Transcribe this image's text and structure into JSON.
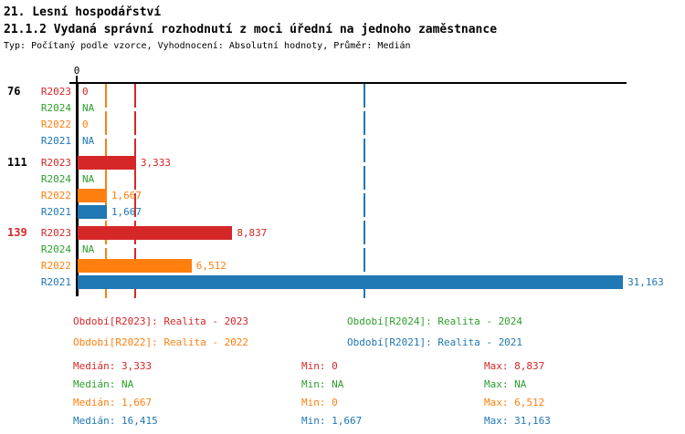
{
  "header": {
    "title": "21. Lesní hospodářství",
    "subtitle": "21.1.2 Vydaná správní rozhodnutí z moci úřední na jednoho zaměstnance",
    "meta": "Typ: Počítaný podle vzorce, Vyhodnocení: Absolutní hodnoty, Průměr: Medián"
  },
  "colors": {
    "R2023": "#d62728",
    "R2024": "#2ca02c",
    "R2022": "#ff7f0e",
    "R2021": "#1f77b4",
    "text": "#000000"
  },
  "chart_data": {
    "type": "bar",
    "orientation": "horizontal",
    "axis": {
      "min": 0,
      "max": 31.42,
      "tick_labels": [
        "0"
      ]
    },
    "groups": [
      {
        "label": "76",
        "label_color": "#000000",
        "bars": [
          {
            "series": "R2023",
            "value": 0,
            "display": "0"
          },
          {
            "series": "R2024",
            "value": null,
            "display": "NA"
          },
          {
            "series": "R2022",
            "value": 0,
            "display": "0"
          },
          {
            "series": "R2021",
            "value": null,
            "display": "NA"
          }
        ]
      },
      {
        "label": "111",
        "label_color": "#000000",
        "bars": [
          {
            "series": "R2023",
            "value": 3.333,
            "display": "3,333"
          },
          {
            "series": "R2024",
            "value": null,
            "display": "NA"
          },
          {
            "series": "R2022",
            "value": 1.667,
            "display": "1,667"
          },
          {
            "series": "R2021",
            "value": 1.667,
            "display": "1,667"
          }
        ]
      },
      {
        "label": "139",
        "label_color": "#d62728",
        "bars": [
          {
            "series": "R2023",
            "value": 8.837,
            "display": "8,837"
          },
          {
            "series": "R2024",
            "value": null,
            "display": "NA"
          },
          {
            "series": "R2022",
            "value": 6.512,
            "display": "6,512"
          },
          {
            "series": "R2021",
            "value": 31.163,
            "display": "31,163"
          }
        ]
      }
    ],
    "median_lines": [
      {
        "series": "R2022",
        "value": 1.667
      },
      {
        "series": "R2023",
        "value": 3.333
      },
      {
        "series": "R2021",
        "value": 16.415
      }
    ]
  },
  "legend": [
    {
      "series": "R2023",
      "label": "Období[R2023]: Realita - 2023",
      "row": 0,
      "col": 0
    },
    {
      "series": "R2024",
      "label": "Období[R2024]: Realita - 2024",
      "row": 0,
      "col": 1
    },
    {
      "series": "R2022",
      "label": "Období[R2022]: Realita - 2022",
      "row": 1,
      "col": 0
    },
    {
      "series": "R2021",
      "label": "Období[R2021]: Realita - 2021",
      "row": 1,
      "col": 1
    }
  ],
  "stat_labels": {
    "median": "Medián",
    "min": "Min",
    "max": "Max"
  },
  "stats": [
    {
      "series": "R2023",
      "median": "3,333",
      "min": "0",
      "max": "8,837"
    },
    {
      "series": "R2024",
      "median": "NA",
      "min": "NA",
      "max": "NA"
    },
    {
      "series": "R2022",
      "median": "1,667",
      "min": "0",
      "max": "6,512"
    },
    {
      "series": "R2021",
      "median": "16,415",
      "min": "1,667",
      "max": "31,163"
    }
  ]
}
